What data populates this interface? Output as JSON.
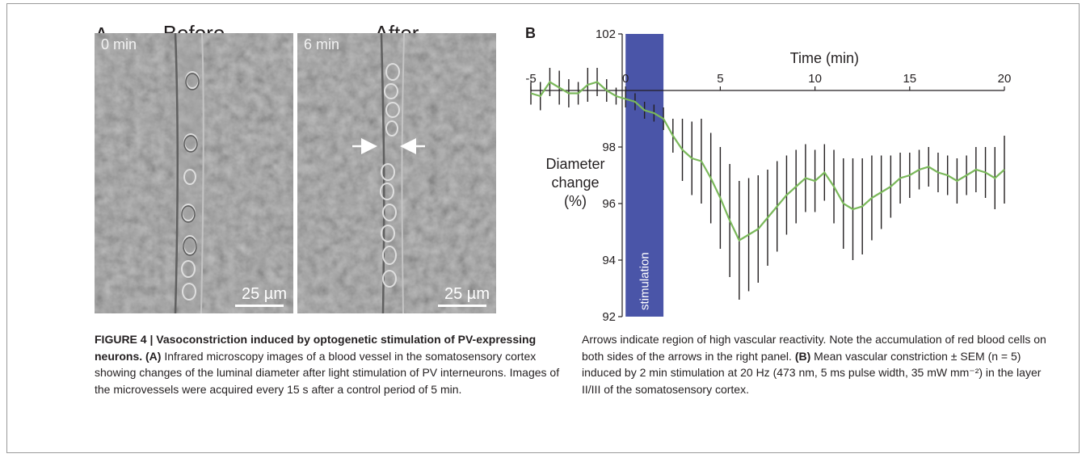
{
  "panel_a": {
    "letter": "A",
    "before": {
      "title": "Before",
      "time": "0 min",
      "scale": "25 µm"
    },
    "after": {
      "title": "After",
      "time": "6 min",
      "scale": "25 µm"
    }
  },
  "panel_b": {
    "letter": "B"
  },
  "chart_data": {
    "type": "line",
    "title": "",
    "xlabel": "Time (min)",
    "ylabel": "Diameter change (%)",
    "ylabel_lines": [
      "Diameter",
      "change",
      "(%)"
    ],
    "xlim": [
      -5,
      20
    ],
    "ylim": [
      92,
      102
    ],
    "xticks": [
      -5,
      0,
      5,
      10,
      15,
      20
    ],
    "yticks": [
      92,
      94,
      96,
      98,
      102
    ],
    "stimulation": {
      "label": "stimulation",
      "start": 0,
      "end": 2,
      "color": "#4a55a8"
    },
    "series": [
      {
        "color": "#7ab85a",
        "x": [
          -5,
          -4.5,
          -4,
          -3.5,
          -3,
          -2.5,
          -2,
          -1.5,
          -1,
          -0.5,
          0,
          0.5,
          1,
          1.5,
          2,
          2.5,
          3,
          3.5,
          4,
          4.5,
          5,
          5.5,
          6,
          6.5,
          7,
          7.5,
          8,
          8.5,
          9,
          9.5,
          10,
          10.5,
          11,
          11.5,
          12,
          12.5,
          13,
          13.5,
          14,
          14.5,
          15,
          15.5,
          16,
          16.5,
          17,
          17.5,
          18,
          18.5,
          19,
          19.5,
          20
        ],
        "y": [
          99.9,
          99.8,
          100.3,
          100.1,
          99.9,
          99.9,
          100.2,
          100.3,
          100.0,
          99.8,
          99.7,
          99.6,
          99.3,
          99.2,
          99.0,
          98.4,
          97.9,
          97.6,
          97.5,
          96.9,
          96.2,
          95.4,
          94.7,
          94.9,
          95.1,
          95.5,
          95.9,
          96.3,
          96.6,
          96.9,
          96.8,
          97.1,
          96.6,
          96.0,
          95.8,
          95.9,
          96.2,
          96.4,
          96.6,
          96.9,
          97.0,
          97.2,
          97.3,
          97.1,
          97.0,
          96.8,
          97.0,
          97.2,
          97.1,
          96.9,
          97.2
        ],
        "sem": [
          0.4,
          0.5,
          0.5,
          0.6,
          0.5,
          0.4,
          0.6,
          0.5,
          0.4,
          0.3,
          0.3,
          0.3,
          0.3,
          0.3,
          0.4,
          0.6,
          1.1,
          1.3,
          1.5,
          1.6,
          1.8,
          2.0,
          2.1,
          2.0,
          1.9,
          1.7,
          1.6,
          1.4,
          1.3,
          1.2,
          1.1,
          1.0,
          1.3,
          1.6,
          1.8,
          1.7,
          1.5,
          1.3,
          1.1,
          0.9,
          0.8,
          0.7,
          0.7,
          0.7,
          0.7,
          0.8,
          0.7,
          0.8,
          0.9,
          1.1,
          1.2
        ]
      }
    ]
  },
  "caption": {
    "heading": "FIGURE 4 | Vasoconstriction induced by optogenetic stimulation of PV-expressing neurons.",
    "a_label": "(A)",
    "a_text": " Infrared microscopy images of a blood vessel in the somatosensory cortex showing changes of the luminal diameter after light stimulation of PV interneurons. Images of the microvessels were acquired every 15 s after a control period of 5 min.",
    "b_pre": "Arrows indicate region of high vascular reactivity. Note the accumulation of red blood cells on both sides of the arrows in the right panel. ",
    "b_label": "(B)",
    "b_text": " Mean vascular constriction ± SEM (n = 5) induced by 2 min stimulation at 20 Hz (473 nm, 5 ms pulse width, 35 mW mm⁻²) in the layer II/III of the somatosensory cortex."
  }
}
